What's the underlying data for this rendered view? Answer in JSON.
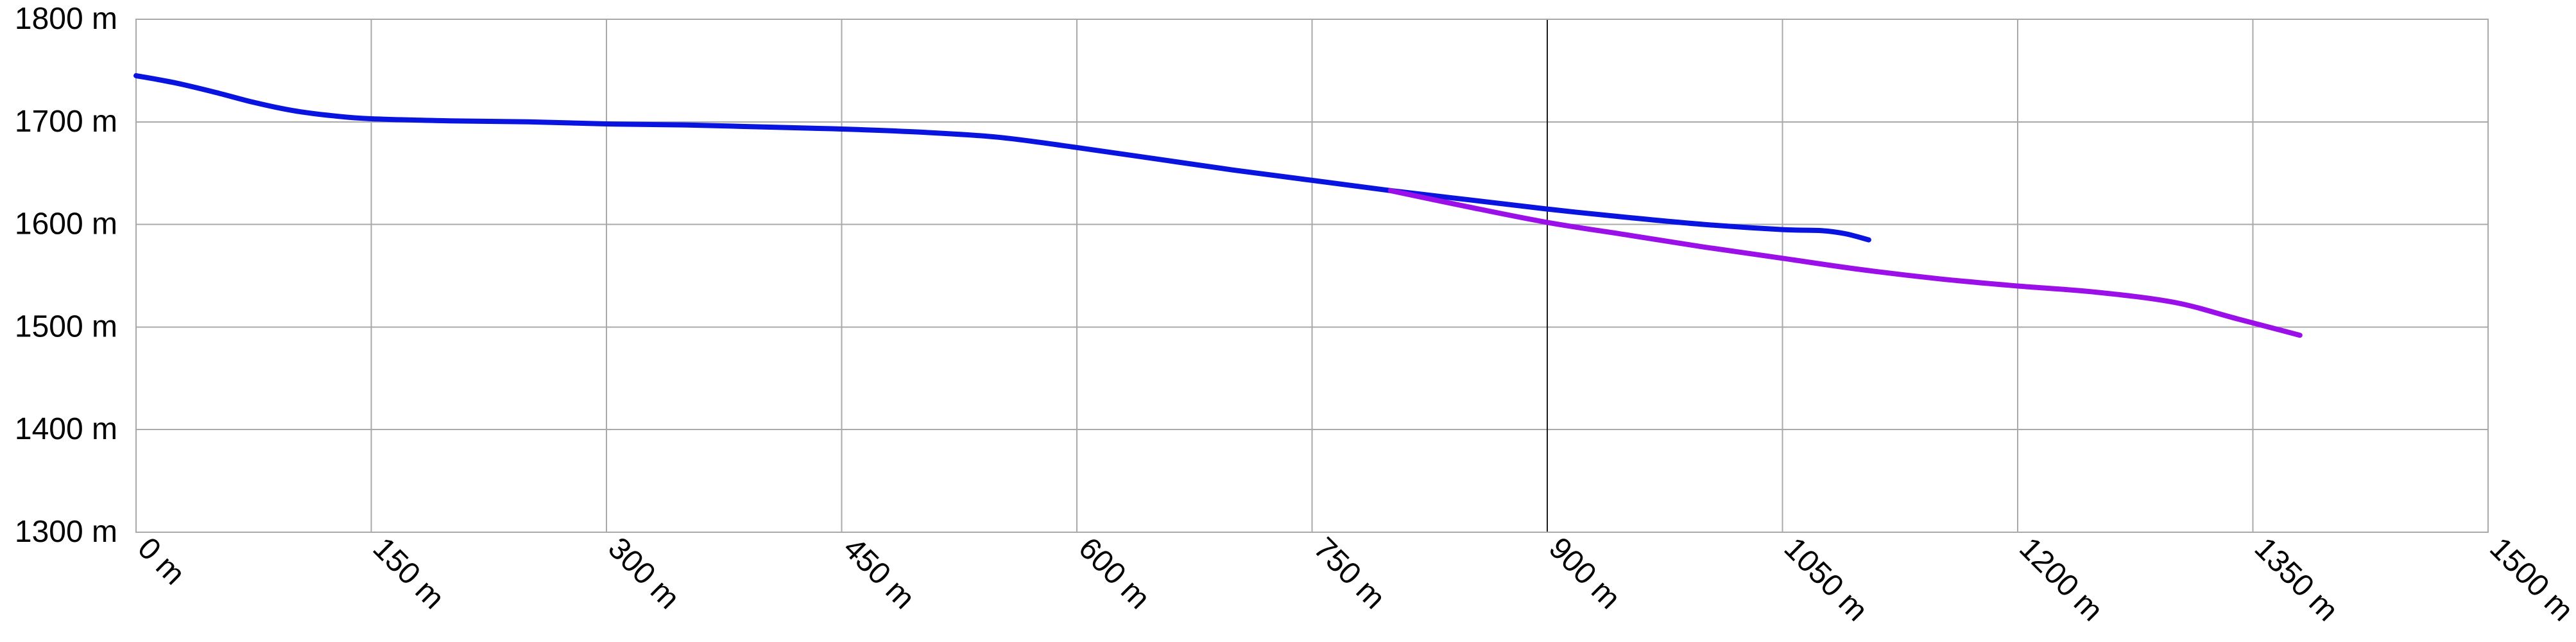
{
  "chart_data": {
    "type": "line",
    "title": "",
    "xlabel": "",
    "ylabel": "",
    "xlim": [
      0,
      1500
    ],
    "ylim": [
      1300,
      1800
    ],
    "grid": true,
    "x_ticks": [
      0,
      150,
      300,
      450,
      600,
      750,
      900,
      1050,
      1200,
      1350,
      1500
    ],
    "y_ticks": [
      1300,
      1400,
      1500,
      1600,
      1700,
      1800
    ],
    "x_tick_labels": [
      "0 m",
      "150 m",
      "300 m",
      "450 m",
      "600 m",
      "750 m",
      "900 m",
      "1050 m",
      "1200 m",
      "1350 m",
      "1500 m"
    ],
    "y_tick_labels": [
      "1300 m",
      "1400 m",
      "1500 m",
      "1600 m",
      "1700 m",
      "1800 m"
    ],
    "emphasized_x_gridline": 900,
    "series": [
      {
        "color": "#0a14e0",
        "points": [
          [
            0,
            1745
          ],
          [
            25,
            1738
          ],
          [
            50,
            1729
          ],
          [
            75,
            1719
          ],
          [
            100,
            1711
          ],
          [
            125,
            1706
          ],
          [
            150,
            1703
          ],
          [
            200,
            1701
          ],
          [
            250,
            1700
          ],
          [
            300,
            1698
          ],
          [
            350,
            1697
          ],
          [
            400,
            1695
          ],
          [
            450,
            1693
          ],
          [
            500,
            1690
          ],
          [
            550,
            1685
          ],
          [
            600,
            1675
          ],
          [
            650,
            1664
          ],
          [
            700,
            1653
          ],
          [
            750,
            1643
          ],
          [
            800,
            1633
          ],
          [
            850,
            1624
          ],
          [
            900,
            1615
          ],
          [
            950,
            1607
          ],
          [
            1000,
            1600
          ],
          [
            1050,
            1595
          ],
          [
            1075,
            1594
          ],
          [
            1090,
            1591
          ],
          [
            1105,
            1585
          ]
        ]
      },
      {
        "color": "#9b10e8",
        "points": [
          [
            800,
            1633
          ],
          [
            850,
            1617
          ],
          [
            900,
            1602
          ],
          [
            950,
            1590
          ],
          [
            1000,
            1578
          ],
          [
            1050,
            1567
          ],
          [
            1100,
            1556
          ],
          [
            1150,
            1547
          ],
          [
            1200,
            1540
          ],
          [
            1250,
            1534
          ],
          [
            1300,
            1524
          ],
          [
            1340,
            1508
          ],
          [
            1380,
            1492
          ]
        ]
      }
    ]
  }
}
